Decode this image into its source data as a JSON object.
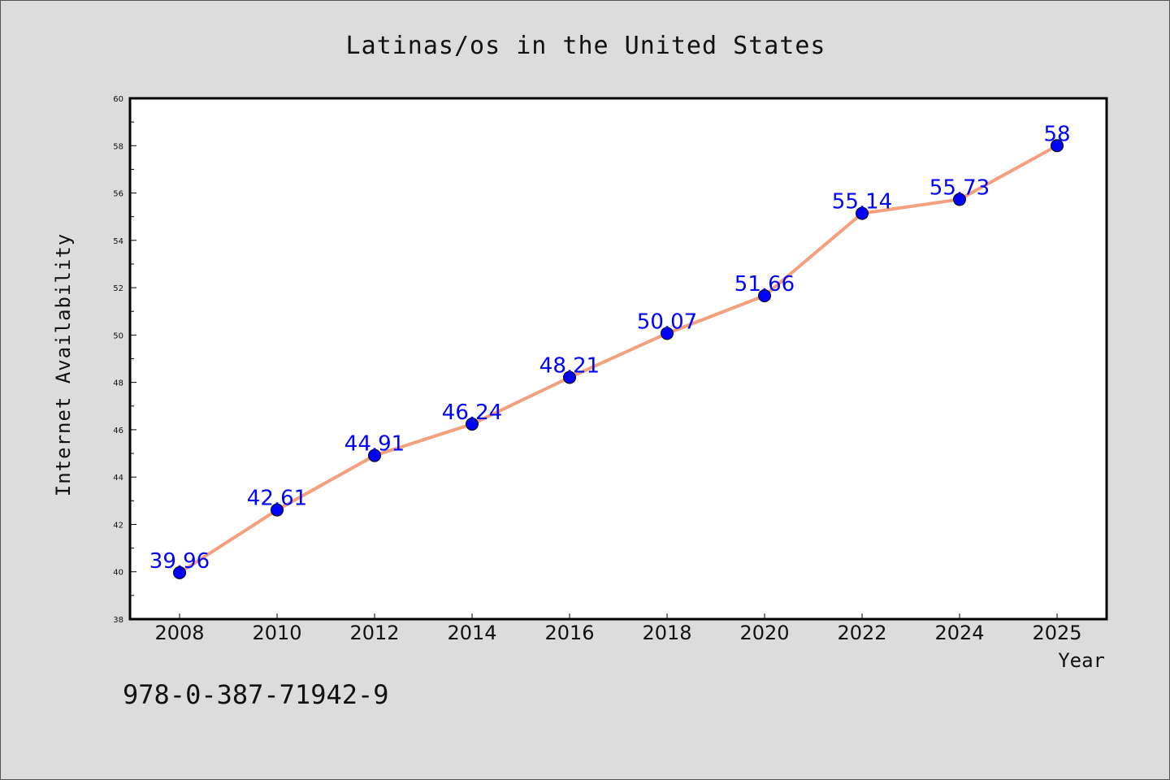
{
  "chart_data": {
    "type": "line",
    "title": "Latinas/os in the United States",
    "xlabel": "Year",
    "ylabel": "Internet Availability",
    "categories": [
      "2008",
      "2010",
      "2012",
      "2014",
      "2016",
      "2018",
      "2020",
      "2022",
      "2024",
      "2025"
    ],
    "series": [
      {
        "values": [
          39.96,
          42.61,
          44.91,
          46.24,
          48.21,
          50.07,
          51.66,
          55.14,
          55.73,
          58
        ],
        "labels": [
          "39.96",
          "42.61",
          "44.91",
          "46.24",
          "48.21",
          "50.07",
          "51.66",
          "55.14",
          "55.73",
          "58"
        ]
      }
    ],
    "ylim": [
      38,
      60
    ],
    "yticks": [
      38,
      40,
      42,
      44,
      46,
      48,
      50,
      52,
      54,
      56,
      58,
      60
    ],
    "grid": false,
    "legend": "none",
    "colors": {
      "line": "#f4a07c",
      "marker": "#0000ff",
      "data_label": "#0000ff",
      "background": "#dcdcdc",
      "plot_area": "#ffffff"
    }
  },
  "footer": {
    "isbn": "978-0-387-71942-9"
  }
}
